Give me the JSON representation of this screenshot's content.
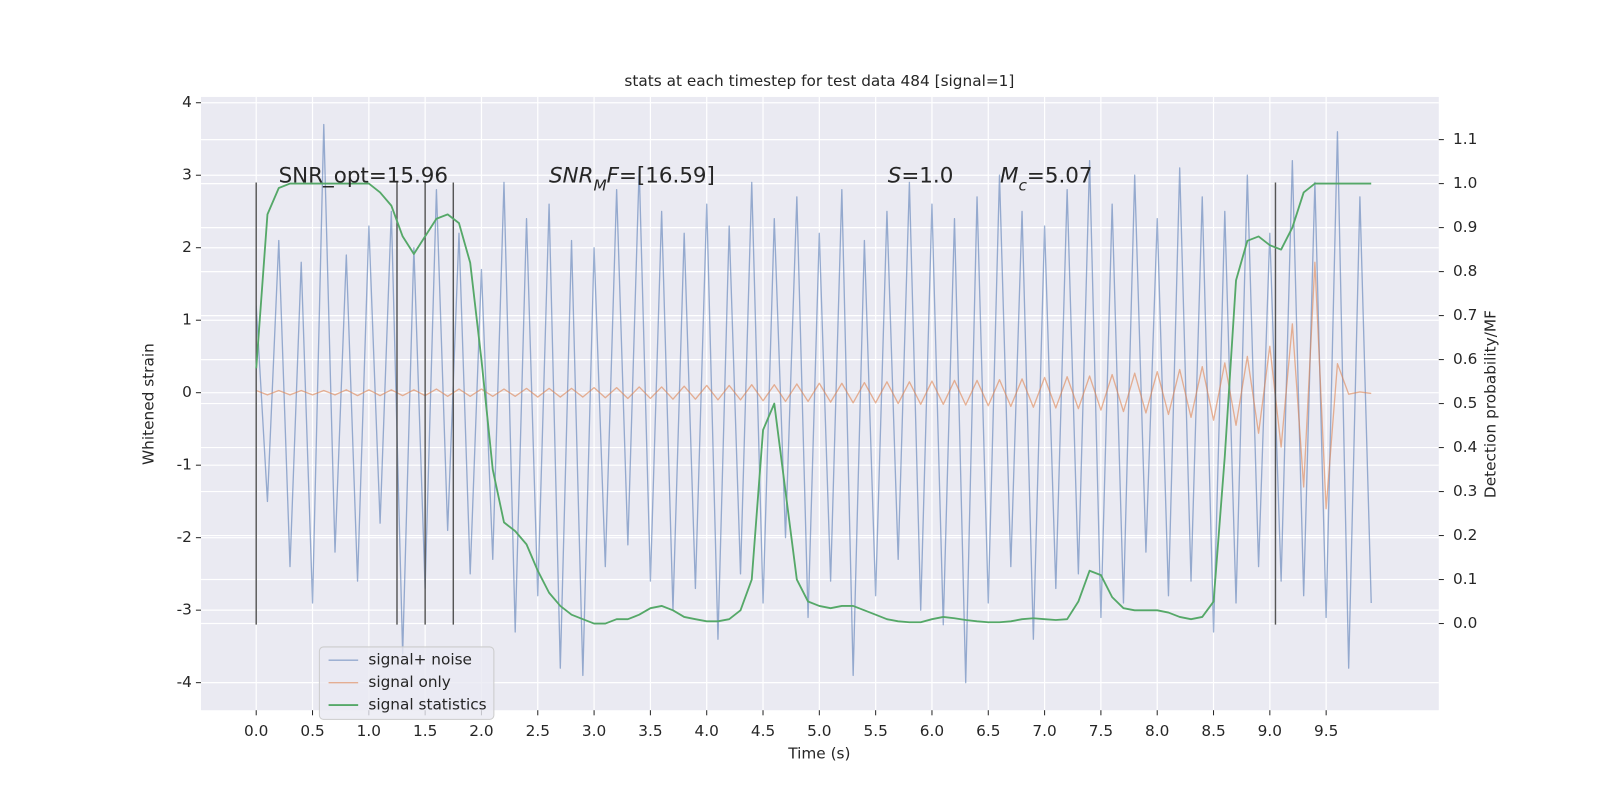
{
  "chart_data": {
    "type": "line",
    "title": "stats at each timestep for test data 484 [signal=1]",
    "xlabel": "Time (s)",
    "ylabel": "Whitened strain",
    "y2label": "Detection probability/MF",
    "x": [
      0,
      0.1,
      0.2,
      0.3,
      0.4,
      0.5,
      0.6,
      0.7,
      0.8,
      0.9,
      1.0,
      1.1,
      1.2,
      1.3,
      1.4,
      1.5,
      1.6,
      1.7,
      1.8,
      1.9,
      2.0,
      2.1,
      2.2,
      2.3,
      2.4,
      2.5,
      2.6,
      2.7,
      2.8,
      2.9,
      3.0,
      3.1,
      3.2,
      3.3,
      3.4,
      3.5,
      3.6,
      3.7,
      3.8,
      3.9,
      4.0,
      4.1,
      4.2,
      4.3,
      4.4,
      4.5,
      4.6,
      4.7,
      4.8,
      4.9,
      5.0,
      5.1,
      5.2,
      5.3,
      5.4,
      5.5,
      5.6,
      5.7,
      5.8,
      5.9,
      6.0,
      6.1,
      6.2,
      6.3,
      6.4,
      6.5,
      6.6,
      6.7,
      6.8,
      6.9,
      7.0,
      7.1,
      7.2,
      7.3,
      7.4,
      7.5,
      7.6,
      7.7,
      7.8,
      7.9,
      8.0,
      8.1,
      8.2,
      8.3,
      8.4,
      8.5,
      8.6,
      8.7,
      8.8,
      8.9,
      9.0,
      9.1,
      9.2,
      9.3,
      9.4,
      9.5,
      9.6,
      9.7,
      9.8,
      9.9
    ],
    "series": [
      {
        "name": "signal+ noise",
        "color": "#4c72b0",
        "values": [
          1.2,
          -1.5,
          2.1,
          -2.4,
          1.8,
          -2.9,
          3.7,
          -2.2,
          1.9,
          -2.6,
          2.3,
          -1.8,
          2.5,
          -3.6,
          2.0,
          -2.7,
          2.8,
          -1.9,
          2.2,
          -2.5,
          1.7,
          -2.3,
          2.9,
          -3.3,
          2.4,
          -2.8,
          2.6,
          -3.8,
          2.1,
          -3.9,
          2.0,
          -2.4,
          2.8,
          -2.1,
          3.1,
          -2.6,
          2.5,
          -3.0,
          2.2,
          -2.7,
          2.6,
          -3.4,
          2.3,
          -2.5,
          2.9,
          -2.9,
          2.4,
          -2.0,
          2.7,
          -3.1,
          2.2,
          -2.6,
          2.8,
          -3.9,
          2.1,
          -2.8,
          2.5,
          -2.3,
          2.9,
          -3.0,
          2.6,
          -3.2,
          2.4,
          -4.0,
          2.7,
          -2.9,
          3.0,
          -2.4,
          2.5,
          -3.4,
          2.3,
          -2.7,
          2.8,
          -2.5,
          3.2,
          -3.1,
          2.6,
          -2.9,
          3.0,
          -2.2,
          2.4,
          -2.8,
          3.1,
          -2.6,
          2.7,
          -3.3,
          2.5,
          -2.9,
          3.0,
          -2.4,
          2.2,
          -2.6,
          3.2,
          -2.8,
          2.9,
          -3.1,
          3.6,
          -3.8,
          2.7,
          -2.9
        ]
      },
      {
        "name": "signal only",
        "color": "#dd8452",
        "values": [
          0.03,
          -0.03,
          0.03,
          -0.03,
          0.03,
          -0.03,
          0.03,
          -0.03,
          0.04,
          -0.04,
          0.04,
          -0.04,
          0.04,
          -0.04,
          0.04,
          -0.04,
          0.05,
          -0.05,
          0.05,
          -0.05,
          0.05,
          -0.05,
          0.05,
          -0.05,
          0.06,
          -0.06,
          0.06,
          -0.06,
          0.06,
          -0.06,
          0.07,
          -0.07,
          0.07,
          -0.08,
          0.08,
          -0.08,
          0.08,
          -0.09,
          0.09,
          -0.09,
          0.1,
          -0.1,
          0.1,
          -0.1,
          0.11,
          -0.11,
          0.11,
          -0.12,
          0.12,
          -0.12,
          0.13,
          -0.13,
          0.13,
          -0.14,
          0.14,
          -0.14,
          0.15,
          -0.15,
          0.15,
          -0.16,
          0.16,
          -0.16,
          0.17,
          -0.17,
          0.17,
          -0.18,
          0.18,
          -0.19,
          0.19,
          -0.2,
          0.21,
          -0.21,
          0.22,
          -0.22,
          0.23,
          -0.24,
          0.25,
          -0.26,
          0.27,
          -0.28,
          0.29,
          -0.3,
          0.32,
          -0.34,
          0.36,
          -0.38,
          0.41,
          -0.45,
          0.5,
          -0.56,
          0.64,
          -0.75,
          0.95,
          -1.3,
          1.8,
          -1.6,
          0.4,
          -0.02,
          0.01,
          -0.01
        ]
      },
      {
        "name": "signal statistics",
        "color": "#55a868",
        "axis": "y2",
        "values": [
          0.58,
          0.93,
          0.99,
          1.0,
          1.0,
          1.0,
          1.0,
          1.0,
          1.0,
          1.0,
          1.0,
          0.98,
          0.95,
          0.88,
          0.84,
          0.88,
          0.92,
          0.93,
          0.91,
          0.82,
          0.6,
          0.35,
          0.23,
          0.21,
          0.18,
          0.12,
          0.07,
          0.04,
          0.02,
          0.01,
          0.0,
          0.0,
          0.01,
          0.01,
          0.02,
          0.035,
          0.04,
          0.03,
          0.015,
          0.01,
          0.005,
          0.005,
          0.01,
          0.03,
          0.1,
          0.44,
          0.5,
          0.3,
          0.1,
          0.05,
          0.04,
          0.035,
          0.04,
          0.04,
          0.03,
          0.02,
          0.01,
          0.005,
          0.003,
          0.003,
          0.01,
          0.015,
          0.012,
          0.008,
          0.005,
          0.003,
          0.003,
          0.005,
          0.01,
          0.012,
          0.01,
          0.008,
          0.01,
          0.05,
          0.12,
          0.11,
          0.06,
          0.035,
          0.03,
          0.03,
          0.03,
          0.025,
          0.015,
          0.01,
          0.015,
          0.05,
          0.38,
          0.78,
          0.87,
          0.88,
          0.86,
          0.85,
          0.9,
          0.98,
          1.0,
          1.0,
          1.0,
          1.0,
          1.0,
          1.0
        ]
      }
    ],
    "vlines": {
      "x": [
        0,
        1.25,
        1.5,
        1.75,
        9.05
      ],
      "ymin": -3.2,
      "ymax": 2.9,
      "color": "#555555"
    },
    "annotations": [
      {
        "parts": [
          "SNR_opt=15.96"
        ],
        "styles": [
          "normal"
        ]
      },
      {
        "parts": [
          "SNR",
          "M",
          "F",
          "=[16.59]"
        ],
        "styles": [
          "italic",
          "sub",
          "italic",
          "normal"
        ]
      },
      {
        "parts": [
          "S",
          "=1.0"
        ],
        "styles": [
          "italic",
          "normal"
        ]
      },
      {
        "parts": [
          "M",
          "c",
          "=5.07"
        ],
        "styles": [
          "italic",
          "sub",
          "normal"
        ]
      }
    ],
    "xlim": [
      -0.49,
      10.5
    ],
    "xticks": [
      {
        "value": 0,
        "label": "0.0"
      },
      {
        "value": 0.5,
        "label": "0.5"
      },
      {
        "value": 1,
        "label": "1.0"
      },
      {
        "value": 1.5,
        "label": "1.5"
      },
      {
        "value": 2,
        "label": "2.0"
      },
      {
        "value": 2.5,
        "label": "2.5"
      },
      {
        "value": 3,
        "label": "3.0"
      },
      {
        "value": 3.5,
        "label": "3.5"
      },
      {
        "value": 4,
        "label": "4.0"
      },
      {
        "value": 4.5,
        "label": "4.5"
      },
      {
        "value": 5,
        "label": "5.0"
      },
      {
        "value": 5.5,
        "label": "5.5"
      },
      {
        "value": 6,
        "label": "6.0"
      },
      {
        "value": 6.5,
        "label": "6.5"
      },
      {
        "value": 7,
        "label": "7.0"
      },
      {
        "value": 7.5,
        "label": "7.5"
      },
      {
        "value": 8,
        "label": "8.0"
      },
      {
        "value": 8.5,
        "label": "8.5"
      },
      {
        "value": 9,
        "label": "9.0"
      },
      {
        "value": 9.5,
        "label": "9.5"
      }
    ],
    "ylim": [
      -4.38,
      4.08
    ],
    "yticks": [
      -4,
      -3,
      -2,
      -1,
      0,
      1,
      2,
      3,
      4
    ],
    "y2lim": [
      -0.197,
      1.197
    ],
    "y2ticks": [
      {
        "value": 0,
        "label": "0.0"
      },
      {
        "value": 0.1,
        "label": "0.1"
      },
      {
        "value": 0.2,
        "label": "0.2"
      },
      {
        "value": 0.3,
        "label": "0.3"
      },
      {
        "value": 0.4,
        "label": "0.4"
      },
      {
        "value": 0.5,
        "label": "0.5"
      },
      {
        "value": 0.6,
        "label": "0.6"
      },
      {
        "value": 0.7,
        "label": "0.7"
      },
      {
        "value": 0.8,
        "label": "0.8"
      },
      {
        "value": 0.9,
        "label": "0.9"
      },
      {
        "value": 1,
        "label": "1.0"
      },
      {
        "value": 1.1,
        "label": "1.1"
      }
    ],
    "grid": true,
    "legend": "lower left"
  }
}
